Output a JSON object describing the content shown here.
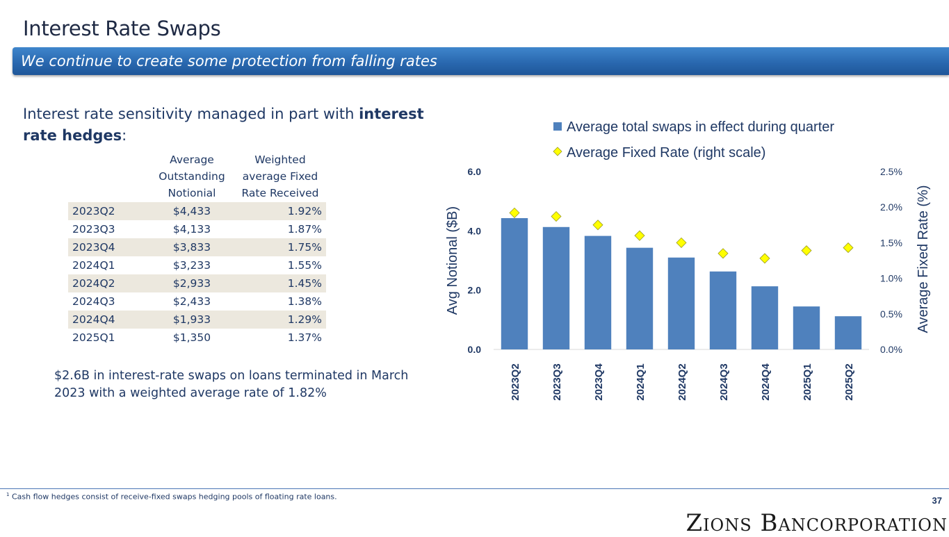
{
  "title": "Interest Rate Swaps",
  "banner": "We continue to create some protection from falling rates",
  "intro": {
    "text_start": "Interest rate sensitivity managed in part with ",
    "text_bold": "interest rate hedges",
    "text_end": ":"
  },
  "table": {
    "headers": [
      "",
      "Average Outstanding Notionial",
      "Weighted average Fixed Rate Received"
    ],
    "rows": [
      {
        "quarter": "2023Q2",
        "notional": "$4,433",
        "rate": "1.92%"
      },
      {
        "quarter": "2023Q3",
        "notional": "$4,133",
        "rate": "1.87%"
      },
      {
        "quarter": "2023Q4",
        "notional": "$3,833",
        "rate": "1.75%"
      },
      {
        "quarter": "2024Q1",
        "notional": "$3,233",
        "rate": "1.55%"
      },
      {
        "quarter": "2024Q2",
        "notional": "$2,933",
        "rate": "1.45%"
      },
      {
        "quarter": "2024Q3",
        "notional": "$2,433",
        "rate": "1.38%"
      },
      {
        "quarter": "2024Q4",
        "notional": "$1,933",
        "rate": "1.29%"
      },
      {
        "quarter": "2025Q1",
        "notional": "$1,350",
        "rate": "1.37%"
      }
    ]
  },
  "note": "$2.6B in interest-rate swaps on loans terminated in March 2023 with a weighted average rate of 1.82%",
  "footnote_marker": "1",
  "footnote": "Cash flow hedges consist of receive-fixed swaps hedging pools of floating rate loans.",
  "page_number": "37",
  "logo": "Zions Bancorporation",
  "colors": {
    "bar": "#4f81bd",
    "diamond": "#ffff00",
    "diamond_stroke": "#9a9a22",
    "text": "#1f3864"
  },
  "chart_data": {
    "type": "bar",
    "categories": [
      "2023Q2",
      "2023Q3",
      "2023Q4",
      "2024Q1",
      "2024Q2",
      "2024Q3",
      "2024Q4",
      "2025Q1",
      "2025Q2"
    ],
    "series": [
      {
        "name": "Average total swaps in effect during quarter",
        "type": "bar",
        "axis": "left",
        "values": [
          4.43,
          4.13,
          3.83,
          3.43,
          3.1,
          2.63,
          2.13,
          1.45,
          1.12
        ]
      },
      {
        "name": "Average Fixed Rate (right scale)",
        "type": "scatter",
        "marker": "diamond",
        "axis": "right",
        "values": [
          1.92,
          1.87,
          1.75,
          1.6,
          1.5,
          1.35,
          1.28,
          1.39,
          1.43
        ]
      }
    ],
    "ylabel": "Avg Notional ($B)",
    "ylim": [
      0,
      6
    ],
    "yticks": [
      "0.0",
      "2.0",
      "4.0",
      "6.0"
    ],
    "ylabel_right": "Average Fixed Rate (%)",
    "ylim_right": [
      0,
      2.5
    ],
    "yticks_right": [
      "0.0%",
      "0.5%",
      "1.0%",
      "1.5%",
      "2.0%",
      "2.5%"
    ],
    "legend_position": "top"
  }
}
